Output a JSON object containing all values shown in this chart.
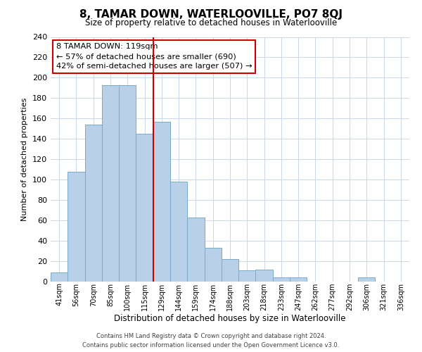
{
  "title": "8, TAMAR DOWN, WATERLOOVILLE, PO7 8QJ",
  "subtitle": "Size of property relative to detached houses in Waterlooville",
  "xlabel": "Distribution of detached houses by size in Waterlooville",
  "ylabel": "Number of detached properties",
  "categories": [
    "41sqm",
    "56sqm",
    "70sqm",
    "85sqm",
    "100sqm",
    "115sqm",
    "129sqm",
    "144sqm",
    "159sqm",
    "174sqm",
    "188sqm",
    "203sqm",
    "218sqm",
    "233sqm",
    "247sqm",
    "262sqm",
    "277sqm",
    "292sqm",
    "306sqm",
    "321sqm",
    "336sqm"
  ],
  "values": [
    9,
    108,
    154,
    193,
    193,
    145,
    157,
    98,
    63,
    33,
    22,
    11,
    12,
    4,
    4,
    0,
    0,
    0,
    4,
    0,
    0
  ],
  "bar_color": "#b8d0e8",
  "bar_edge_color": "#7aaac8",
  "vline_x": 5.5,
  "vline_color": "#cc0000",
  "annotation_title": "8 TAMAR DOWN: 119sqm",
  "annotation_line1": "← 57% of detached houses are smaller (690)",
  "annotation_line2": "42% of semi-detached houses are larger (507) →",
  "annotation_box_color": "#ffffff",
  "annotation_box_edge": "#cc0000",
  "ylim": [
    0,
    240
  ],
  "yticks": [
    0,
    20,
    40,
    60,
    80,
    100,
    120,
    140,
    160,
    180,
    200,
    220,
    240
  ],
  "footer_line1": "Contains HM Land Registry data © Crown copyright and database right 2024.",
  "footer_line2": "Contains public sector information licensed under the Open Government Licence v3.0.",
  "background_color": "#ffffff",
  "grid_color": "#ccd8e8"
}
